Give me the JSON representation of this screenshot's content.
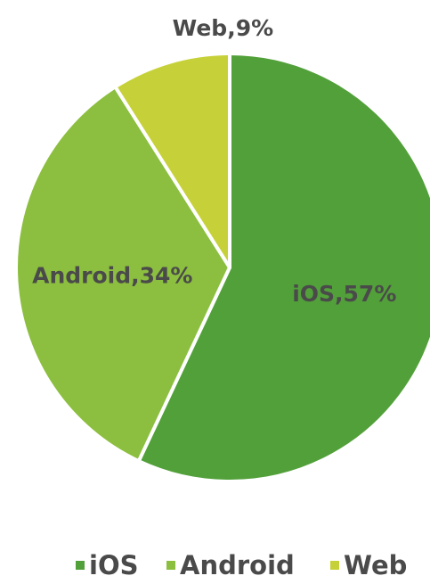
{
  "chart_data": {
    "type": "pie",
    "title": "",
    "series": [
      {
        "name": "iOS",
        "value": 57,
        "label": "iOS,57%",
        "color": "#52a03a"
      },
      {
        "name": "Android",
        "value": 34,
        "label": "Android,34%",
        "color": "#8cbf3f"
      },
      {
        "name": "Web",
        "value": 9,
        "label": "Web,9%",
        "color": "#c6d13a"
      }
    ],
    "legend_position": "bottom",
    "slice_border_color": "#ffffff"
  }
}
